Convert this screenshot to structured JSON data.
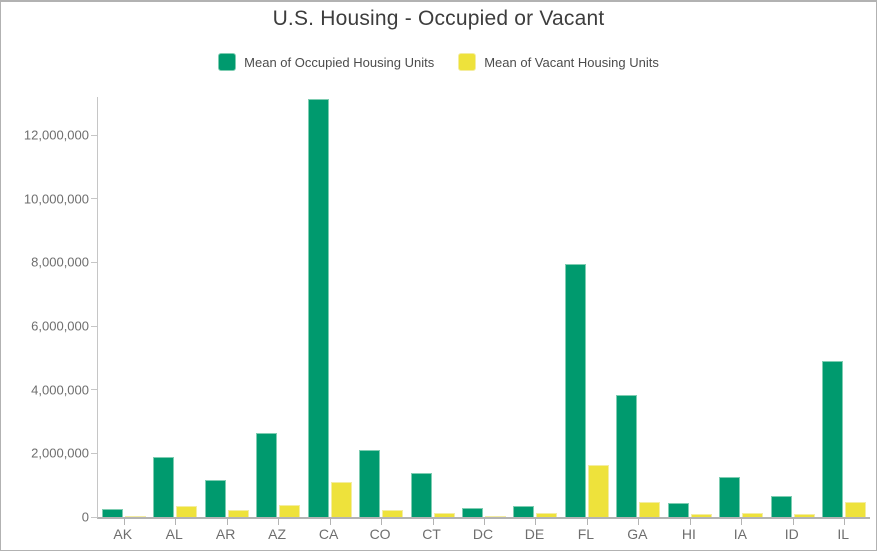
{
  "chart_data": {
    "type": "bar",
    "title": "U.S. Housing - Occupied or Vacant",
    "categories": [
      "AK",
      "AL",
      "AR",
      "AZ",
      "CA",
      "CO",
      "CT",
      "DC",
      "DE",
      "FL",
      "GA",
      "HI",
      "IA",
      "ID",
      "IL"
    ],
    "series": [
      {
        "name": "Mean of Occupied Housing Units",
        "color": "#009A6E",
        "border_color": "#7FCDB2",
        "values": [
          250000,
          1880000,
          1150000,
          2650000,
          13150000,
          2120000,
          1380000,
          280000,
          350000,
          7950000,
          3850000,
          450000,
          1260000,
          650000,
          4900000
        ]
      },
      {
        "name": "Mean of Vacant Housing Units",
        "color": "#EEE23B",
        "border_color": "#F4EDA0",
        "values": [
          45000,
          350000,
          210000,
          390000,
          1100000,
          220000,
          125000,
          40000,
          120000,
          1620000,
          480000,
          85000,
          125000,
          85000,
          480000
        ]
      }
    ],
    "xlabel": "",
    "ylabel": "",
    "ylim": [
      0,
      13200000
    ],
    "y_ticks": [
      0,
      2000000,
      4000000,
      6000000,
      8000000,
      10000000,
      12000000
    ],
    "y_tick_labels": [
      "0",
      "2,000,000",
      "4,000,000",
      "6,000,000",
      "8,000,000",
      "10,000,000",
      "12,000,000"
    ],
    "grid": false,
    "legend_position": "top"
  },
  "colors": {
    "axis": "#C6C6C6",
    "baseline": "#B3B3B3",
    "tick_text": "#6E6E6E",
    "title_text": "#3D3D3D",
    "legend_text": "#4C4C4C",
    "frame_border": "#B2B2B2",
    "background": "#FFFFFF"
  }
}
